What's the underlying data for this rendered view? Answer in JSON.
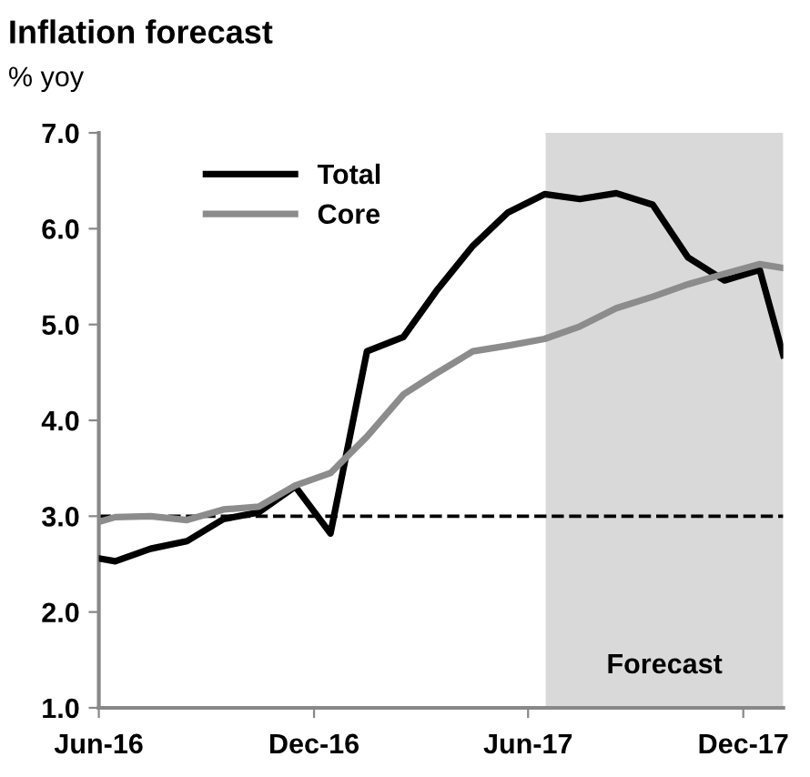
{
  "chart_data": {
    "type": "line",
    "title": "Inflation forecast",
    "ylabel": "% yoy",
    "series": [
      {
        "name": "Total",
        "color": "#000000",
        "x": [
          "2016-06-01",
          "2016-06-15",
          "2016-07-15",
          "2016-08-15",
          "2016-09-15",
          "2016-10-15",
          "2016-11-15",
          "2016-12-15",
          "2017-01-15",
          "2017-02-15",
          "2017-03-15",
          "2017-04-15",
          "2017-05-15",
          "2017-06-15",
          "2017-07-15",
          "2017-08-15",
          "2017-09-15",
          "2017-10-15",
          "2017-11-15",
          "2017-12-15",
          "2018-01-04"
        ],
        "values": [
          2.56,
          2.53,
          2.66,
          2.74,
          2.97,
          3.04,
          3.31,
          2.82,
          4.72,
          4.87,
          5.35,
          5.82,
          6.17,
          6.36,
          6.31,
          6.37,
          6.25,
          5.7,
          5.46,
          5.57,
          4.68
        ]
      },
      {
        "name": "Core",
        "color": "#8c8c8c",
        "x": [
          "2016-06-01",
          "2016-06-15",
          "2016-07-15",
          "2016-08-15",
          "2016-09-15",
          "2016-10-15",
          "2016-11-15",
          "2016-12-15",
          "2017-01-15",
          "2017-02-15",
          "2017-03-15",
          "2017-04-15",
          "2017-05-15",
          "2017-06-15",
          "2017-07-15",
          "2017-08-15",
          "2017-09-15",
          "2017-10-15",
          "2017-11-15",
          "2017-12-15",
          "2018-01-04"
        ],
        "values": [
          2.94,
          2.99,
          3.0,
          2.96,
          3.07,
          3.1,
          3.32,
          3.45,
          3.83,
          4.27,
          4.49,
          4.72,
          4.78,
          4.85,
          4.98,
          5.17,
          5.29,
          5.42,
          5.53,
          5.63,
          5.59
        ]
      }
    ],
    "xlim": [
      "2016-06-01",
      "2018-01-04"
    ],
    "xticks": [
      {
        "value": "2016-06-01",
        "label": "Jun-16"
      },
      {
        "value": "2016-12-01",
        "label": "Dec-16"
      },
      {
        "value": "2017-06-01",
        "label": "Jun-17"
      },
      {
        "value": "2017-12-01",
        "label": "Dec-17"
      }
    ],
    "ylim": [
      1,
      7
    ],
    "yticks": [
      {
        "value": 1,
        "label": "1.0"
      },
      {
        "value": 2,
        "label": "2.0"
      },
      {
        "value": 3,
        "label": "3.0"
      },
      {
        "value": 4,
        "label": "4.0"
      },
      {
        "value": 5,
        "label": "5.0"
      },
      {
        "value": 6,
        "label": "6.0"
      },
      {
        "value": 7,
        "label": "7.0"
      }
    ],
    "ref_lines": [
      {
        "axis": "y",
        "value": 3,
        "color": "#000000",
        "line_style": "dashed"
      }
    ],
    "bands": [
      {
        "axis": "x",
        "from": "2017-06-16",
        "to": "2018-01-04",
        "label": "Forecast",
        "color": "#d9d9d9"
      }
    ],
    "legend": "top left",
    "grid": false,
    "marker": "none",
    "line_style": "solid"
  }
}
